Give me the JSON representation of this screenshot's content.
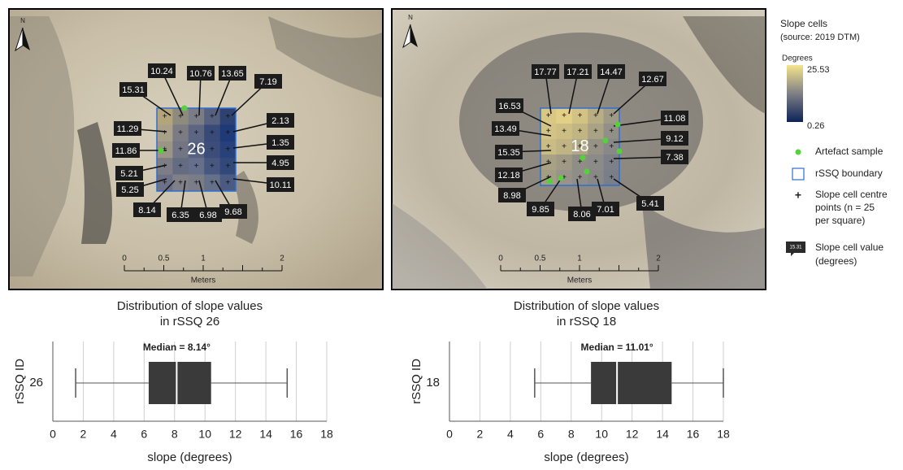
{
  "maps": [
    {
      "north": "N",
      "square_id": "26",
      "scale_labels": [
        "0",
        "0.5",
        "1",
        "2"
      ],
      "scale_unit": "Meters",
      "labels": [
        "15.31",
        "10.24",
        "10.76",
        "13.65",
        "7.19",
        "11.29",
        "2.13",
        "11.86",
        "1.35",
        "5.21",
        "4.95",
        "5.25",
        "10.11",
        "8.14",
        "6.35",
        "6.98",
        "9.68"
      ]
    },
    {
      "north": "N",
      "square_id": "18",
      "scale_labels": [
        "0",
        "0.5",
        "1",
        "2"
      ],
      "scale_unit": "Meters",
      "labels": [
        "17.77",
        "17.21",
        "14.47",
        "12.67",
        "16.53",
        "11.08",
        "13.49",
        "9.12",
        "15.35",
        "7.38",
        "12.18",
        "8.98",
        "9.85",
        "8.06",
        "7.01",
        "5.41"
      ]
    }
  ],
  "legend": {
    "title": "Slope cells",
    "source": "(source: 2019 DTM)",
    "ramp_title": "Degrees",
    "ramp_max": "25.53",
    "ramp_min": "0.26",
    "artefact": "Artefact sample",
    "boundary": "rSSQ boundary",
    "points": [
      "Slope cell centre",
      "points (n = 25",
      "per square)"
    ],
    "value_icon": "15.31",
    "value": [
      "Slope cell value",
      "(degrees)"
    ]
  },
  "chart_data": [
    {
      "type": "box",
      "title": [
        "Distribution of slope values",
        "in rSSQ 26"
      ],
      "xlabel": "slope (degrees)",
      "ylabel": "rSSQ ID",
      "categories": [
        "26"
      ],
      "boxes": [
        {
          "min": 1.5,
          "q1": 6.3,
          "median": 8.14,
          "q3": 10.4,
          "max": 15.4
        }
      ],
      "median_label": "Median = 8.14°",
      "color": "#3a3a3a",
      "xlim": [
        0,
        18
      ],
      "xticks": [
        0,
        2,
        4,
        6,
        8,
        10,
        12,
        14,
        16,
        18
      ],
      "grid": true
    },
    {
      "type": "box",
      "title": [
        "Distribution of slope values",
        "in rSSQ 18"
      ],
      "xlabel": "slope (degrees)",
      "ylabel": "rSSQ ID",
      "categories": [
        "18"
      ],
      "boxes": [
        {
          "min": 5.6,
          "q1": 9.3,
          "median": 11.01,
          "q3": 14.6,
          "max": 18
        }
      ],
      "median_label": "Median = 11.01°",
      "color": "#3a3a3a",
      "xlim": [
        0,
        18
      ],
      "xticks": [
        0,
        2,
        4,
        6,
        8,
        10,
        12,
        14,
        16,
        18
      ],
      "grid": true
    }
  ]
}
